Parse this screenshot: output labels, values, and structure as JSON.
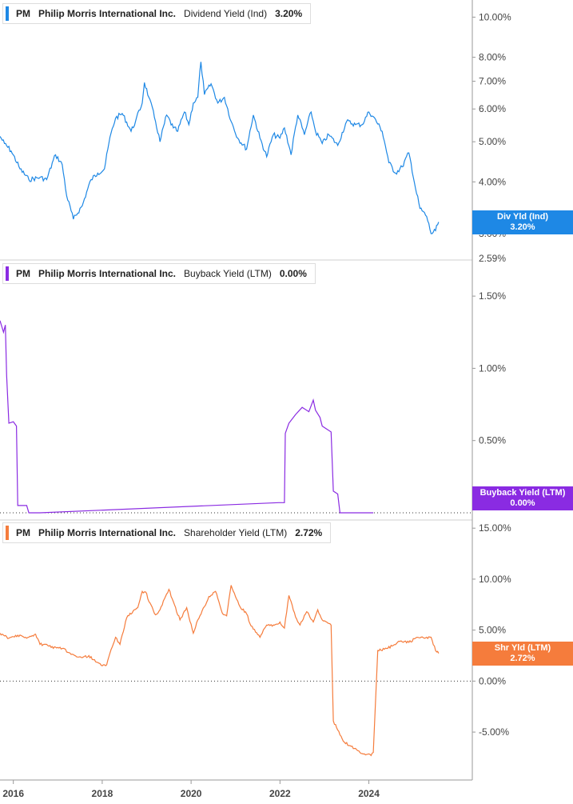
{
  "colors": {
    "dividend": "#1e88e5",
    "buyback": "#8a2be2",
    "shareholder": "#f57c3c",
    "axis": "#444444",
    "grid_zero": "#333333"
  },
  "x_axis": {
    "labels": [
      "2016",
      "2018",
      "2020",
      "2022",
      "2024"
    ],
    "range": [
      2015.7,
      2025.95
    ]
  },
  "panels": [
    {
      "id": "dividend",
      "ticker": "PM",
      "company": "Philip Morris International Inc.",
      "metric": "Dividend Yield (Ind)",
      "value": "3.20%",
      "badge_line1": "Div Yld (Ind)",
      "badge_line2": "3.20%",
      "bottom_label": "2.59%"
    },
    {
      "id": "buyback",
      "ticker": "PM",
      "company": "Philip Morris International Inc.",
      "metric": "Buyback Yield (LTM)",
      "value": "0.00%",
      "badge_line1": "Buyback Yield (LTM)",
      "badge_line2": "0.00%"
    },
    {
      "id": "shareholder",
      "ticker": "PM",
      "company": "Philip Morris International Inc.",
      "metric": "Shareholder Yield (LTM)",
      "value": "2.72%",
      "badge_line1": "Shr Yld (LTM)",
      "badge_line2": "2.72%"
    }
  ],
  "chart_data": [
    {
      "type": "line",
      "title": "PM Philip Morris International Inc. Dividend Yield (Ind) 3.20%",
      "scale": "log",
      "ylim": [
        2.59,
        11.0
      ],
      "yticks": [
        3,
        4,
        5,
        6,
        7,
        8,
        10
      ],
      "ytick_labels": [
        "3.00%",
        "4.00%",
        "5.00%",
        "6.00%",
        "7.00%",
        "8.00%",
        "10.00%"
      ],
      "series": [
        {
          "name": "Dividend Yield (Ind)",
          "x": [
            2015.7,
            2015.8,
            2015.95,
            2016.15,
            2016.35,
            2016.6,
            2016.75,
            2016.95,
            2017.1,
            2017.2,
            2017.35,
            2017.55,
            2017.75,
            2017.9,
            2018.05,
            2018.2,
            2018.3,
            2018.45,
            2018.65,
            2018.75,
            2018.9,
            2018.95,
            2019.05,
            2019.2,
            2019.3,
            2019.45,
            2019.6,
            2019.7,
            2019.85,
            2019.95,
            2020.05,
            2020.15,
            2020.22,
            2020.3,
            2020.45,
            2020.6,
            2020.75,
            2020.9,
            2021.05,
            2021.25,
            2021.4,
            2021.55,
            2021.7,
            2021.85,
            2022.0,
            2022.1,
            2022.25,
            2022.4,
            2022.55,
            2022.7,
            2022.8,
            2022.95,
            2023.1,
            2023.3,
            2023.5,
            2023.7,
            2023.85,
            2024.0,
            2024.1,
            2024.3,
            2024.45,
            2024.6,
            2024.75,
            2024.9,
            2025.05,
            2025.15,
            2025.3,
            2025.4,
            2025.5,
            2025.57
          ],
          "values": [
            5.15,
            4.95,
            4.75,
            4.3,
            4.05,
            4.1,
            4.05,
            4.65,
            4.4,
            3.7,
            3.25,
            3.5,
            4.05,
            4.2,
            4.3,
            5.25,
            5.7,
            5.85,
            5.3,
            5.6,
            6.2,
            6.95,
            6.4,
            5.6,
            5.0,
            5.8,
            5.4,
            5.3,
            5.9,
            5.5,
            6.2,
            6.4,
            7.8,
            6.5,
            6.9,
            6.2,
            6.4,
            5.6,
            5.1,
            4.8,
            5.8,
            5.1,
            4.6,
            5.2,
            5.1,
            5.4,
            4.65,
            5.8,
            5.2,
            5.9,
            5.3,
            4.95,
            5.2,
            4.9,
            5.6,
            5.5,
            5.5,
            5.9,
            5.75,
            5.3,
            4.45,
            4.2,
            4.35,
            4.7,
            3.85,
            3.45,
            3.3,
            3.0,
            3.05,
            3.2
          ]
        }
      ]
    },
    {
      "type": "line",
      "title": "PM Philip Morris International Inc. Buyback Yield (LTM) 0.00%",
      "ylim": [
        -0.05,
        1.75
      ],
      "yticks": [
        0.5,
        1.0,
        1.5
      ],
      "ytick_labels": [
        "0.50%",
        "1.00%",
        "1.50%"
      ],
      "zero_line": true,
      "series": [
        {
          "name": "Buyback Yield (LTM)",
          "x": [
            2015.7,
            2015.78,
            2015.82,
            2015.85,
            2015.9,
            2016.0,
            2016.07,
            2016.1,
            2016.3,
            2016.35,
            2016.6,
            2021.97,
            2022.1,
            2022.12,
            2022.2,
            2022.35,
            2022.5,
            2022.65,
            2022.75,
            2022.8,
            2022.9,
            2022.95,
            2023.05,
            2023.15,
            2023.2,
            2023.3,
            2023.35,
            2023.5,
            2024.1
          ],
          "values": [
            1.33,
            1.25,
            1.3,
            0.95,
            0.62,
            0.63,
            0.6,
            0.05,
            0.05,
            0.0,
            0.0,
            0.07,
            0.07,
            0.55,
            0.62,
            0.68,
            0.73,
            0.7,
            0.78,
            0.71,
            0.66,
            0.6,
            0.58,
            0.56,
            0.15,
            0.13,
            0.0,
            0.0,
            0.0
          ]
        }
      ]
    },
    {
      "type": "line",
      "title": "PM Philip Morris International Inc. Shareholder Yield (LTM) 2.72%",
      "ylim": [
        -9.7,
        15.8
      ],
      "yticks": [
        -5,
        0,
        5,
        10,
        15
      ],
      "ytick_labels": [
        "-5.00%",
        "0.00%",
        "5.00%",
        "10.00%",
        "15.00%"
      ],
      "zero_line": true,
      "series": [
        {
          "name": "Shareholder Yield (LTM)",
          "x": [
            2015.7,
            2015.9,
            2016.1,
            2016.3,
            2016.5,
            2016.6,
            2016.75,
            2016.85,
            2017.1,
            2017.25,
            2017.35,
            2017.55,
            2017.7,
            2017.85,
            2018.0,
            2018.1,
            2018.2,
            2018.3,
            2018.4,
            2018.55,
            2018.7,
            2018.8,
            2018.9,
            2019.0,
            2019.05,
            2019.2,
            2019.3,
            2019.5,
            2019.6,
            2019.75,
            2019.9,
            2020.05,
            2020.15,
            2020.3,
            2020.4,
            2020.55,
            2020.7,
            2020.8,
            2020.9,
            2020.95,
            2021.1,
            2021.25,
            2021.35,
            2021.55,
            2021.7,
            2021.85,
            2022.0,
            2022.1,
            2022.2,
            2022.35,
            2022.45,
            2022.6,
            2022.75,
            2022.85,
            2022.95,
            2023.05,
            2023.15,
            2023.2,
            2023.3,
            2023.45,
            2023.6,
            2023.8,
            2023.95,
            2024.05,
            2024.1,
            2024.2,
            2024.4,
            2024.55,
            2024.7,
            2024.9,
            2025.1,
            2025.25,
            2025.4,
            2025.5,
            2025.57
          ],
          "values": [
            4.7,
            4.2,
            4.5,
            4.2,
            4.6,
            3.6,
            3.6,
            3.3,
            3.2,
            2.8,
            2.6,
            2.3,
            2.5,
            1.9,
            1.5,
            1.6,
            3.1,
            4.3,
            3.6,
            6.2,
            6.9,
            7.2,
            8.8,
            8.6,
            7.8,
            6.5,
            7.0,
            9.0,
            7.8,
            6.0,
            7.2,
            4.7,
            6.0,
            7.3,
            8.3,
            8.8,
            6.7,
            6.4,
            9.4,
            8.8,
            7.3,
            6.6,
            5.4,
            4.3,
            5.5,
            5.5,
            5.8,
            5.2,
            8.4,
            6.3,
            5.5,
            6.8,
            5.8,
            7.0,
            6.0,
            5.8,
            5.5,
            -3.9,
            -4.8,
            -6.0,
            -6.4,
            -7.0,
            -7.2,
            -7.3,
            -7.0,
            3.0,
            3.2,
            3.5,
            3.9,
            3.8,
            4.3,
            4.2,
            4.3,
            3.0,
            2.72
          ]
        }
      ]
    }
  ]
}
